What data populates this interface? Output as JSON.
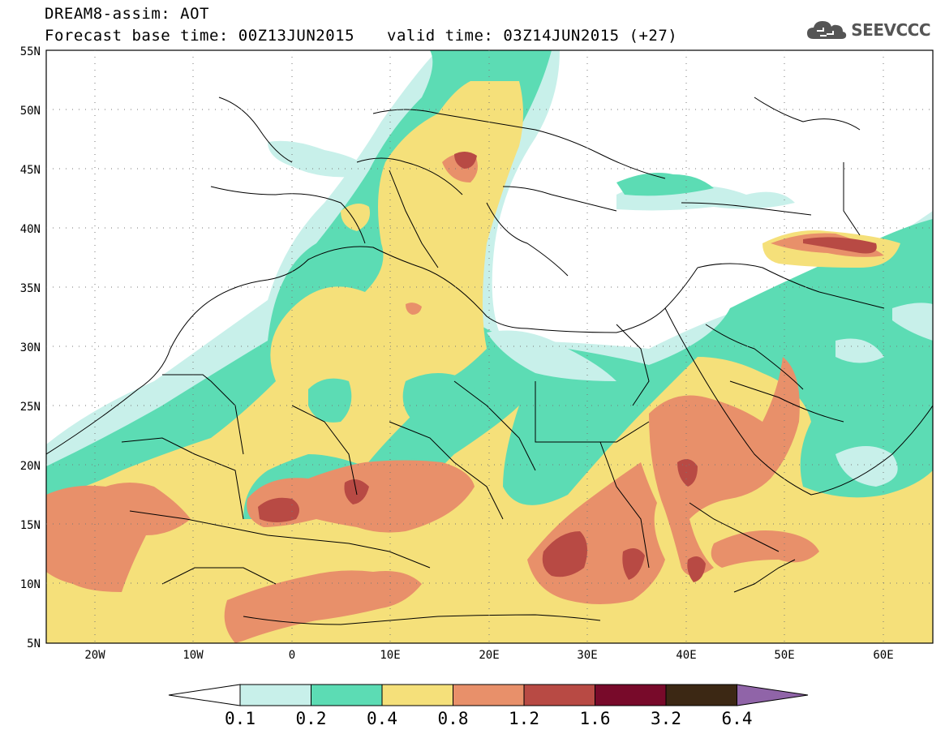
{
  "header": {
    "line1": "DREAM8-assim: AOT",
    "line2_base": "Forecast base time: 00Z13JUN2015",
    "line2_valid": "valid time: 03Z14JUN2015 (+27)"
  },
  "logo": {
    "text": "SEEVCCC",
    "icon": "cloud-icon",
    "color": "#555555"
  },
  "map": {
    "lon_range": [
      -25,
      65
    ],
    "lat_range": [
      5,
      55
    ],
    "lat_ticks": [
      "55N",
      "50N",
      "45N",
      "40N",
      "35N",
      "30N",
      "25N",
      "20N",
      "15N",
      "10N",
      "5N"
    ],
    "lon_ticks": [
      "20W",
      "10W",
      "0",
      "10E",
      "20E",
      "30E",
      "40E",
      "50E",
      "60E"
    ]
  },
  "colorbar": {
    "levels": [
      "0.1",
      "0.2",
      "0.4",
      "0.8",
      "1.2",
      "1.6",
      "3.2",
      "6.4"
    ],
    "colors": [
      "#ffffff",
      "#c8f0ea",
      "#5cdcb4",
      "#f5e07a",
      "#e8906a",
      "#b84a44",
      "#780a2a",
      "#3c2814",
      "#9064a8"
    ]
  }
}
